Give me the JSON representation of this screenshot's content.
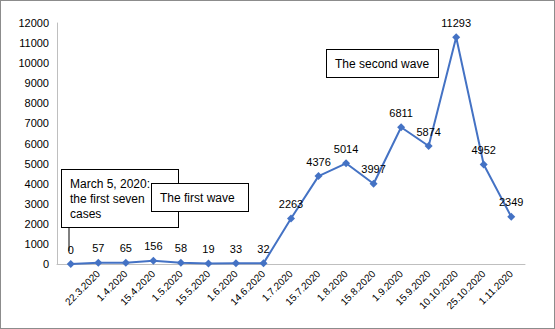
{
  "chart_data": {
    "type": "line",
    "categories": [
      null,
      "22.3.2020",
      "1.4.2020",
      "15.4.2020",
      "1.5.2020",
      "15.5.2020",
      "1.6.2020",
      "14.6.2020",
      "1.7.2020",
      "15.7.2020",
      "1.8.2020",
      "15.8.2020",
      "1.9.2020",
      "15.9.2020",
      "10.10.2020",
      "25.10.2020",
      "1.11.2020"
    ],
    "values": [
      0,
      57,
      65,
      156,
      58,
      19,
      33,
      32,
      2263,
      4376,
      5014,
      3997,
      6811,
      5874,
      11293,
      4952,
      2349
    ],
    "color": "#4472c4",
    "marker": "diamond",
    "data_labels": true,
    "grid": false,
    "ylim": [
      0,
      12000
    ],
    "yticks": [
      0,
      1000,
      2000,
      3000,
      4000,
      5000,
      6000,
      7000,
      8000,
      9000,
      10000,
      11000,
      12000
    ],
    "annotations": [
      "March 5, 2020: the first seven cases",
      "The first wave",
      "The second wave"
    ]
  }
}
